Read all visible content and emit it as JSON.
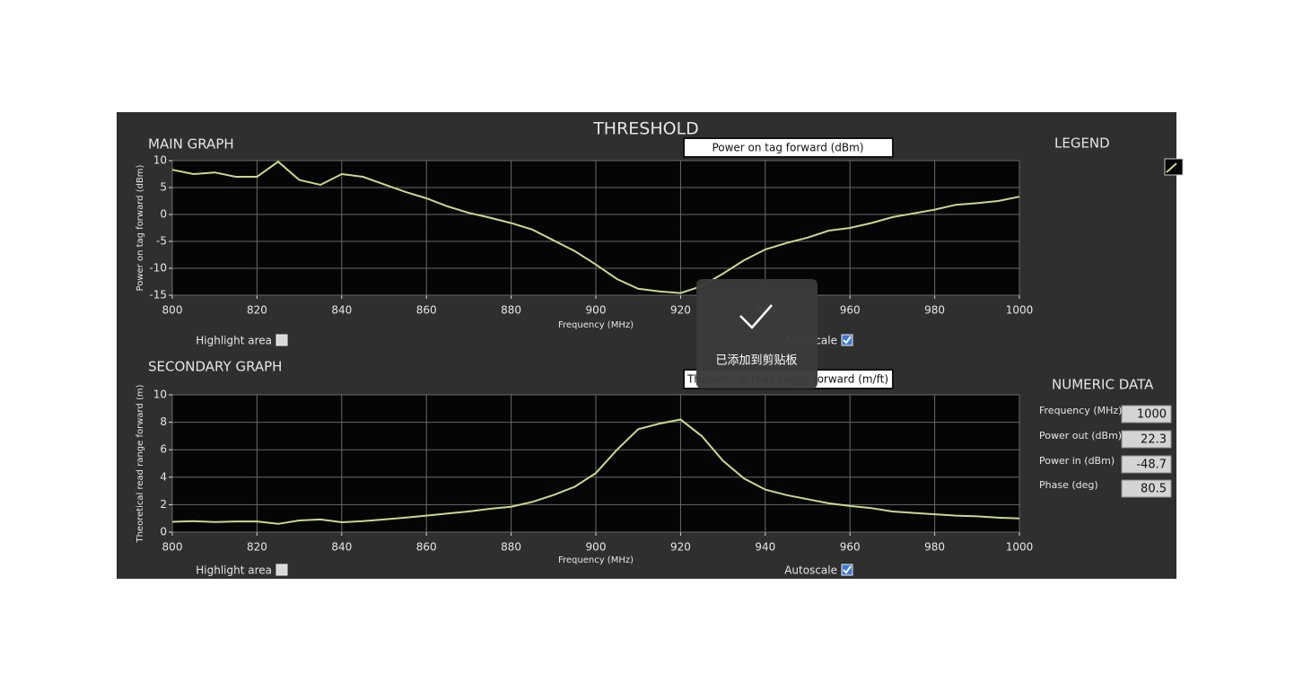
{
  "title": "THRESHOLD",
  "main_graph": {
    "heading": "MAIN GRAPH",
    "selector": "Power on tag forward (dBm)",
    "highlight_label": "Highlight area",
    "highlight_checked": false,
    "autoscale_label": "Autoscale",
    "autoscale_checked": true
  },
  "secondary_graph": {
    "heading": "SECONDARY GRAPH",
    "selector": "Theoretical read range forward (m/ft)",
    "highlight_label": "Highlight area",
    "highlight_checked": false,
    "autoscale_label": "Autoscale",
    "autoscale_checked": true
  },
  "legend": {
    "heading": "LEGEND"
  },
  "numeric_data": {
    "heading": "NUMERIC DATA",
    "rows": [
      {
        "label": "Frequency (MHz)",
        "value": 1000
      },
      {
        "label": "Power out (dBm)",
        "value": 22.3
      },
      {
        "label": "Power in (dBm)",
        "value": -48.7
      },
      {
        "label": "Phase (deg)",
        "value": 80.5
      }
    ]
  },
  "toast": {
    "message": "已添加到剪贴板"
  },
  "chart_data": [
    {
      "type": "line",
      "x_label": "Frequency (MHz)",
      "y_label": "Power on tag forward (dBm)",
      "x": [
        800,
        805,
        810,
        815,
        820,
        825,
        830,
        835,
        840,
        845,
        850,
        855,
        860,
        865,
        870,
        875,
        880,
        885,
        890,
        895,
        900,
        905,
        910,
        915,
        920,
        925,
        930,
        935,
        940,
        945,
        950,
        955,
        960,
        965,
        970,
        975,
        980,
        985,
        990,
        995,
        1000
      ],
      "series": [
        {
          "color": "#c8da8c",
          "values": [
            8.3,
            7.5,
            7.8,
            7.0,
            7.0,
            9.8,
            6.4,
            5.5,
            7.5,
            7.0,
            5.6,
            4.2,
            3.0,
            1.5,
            0.3,
            -0.6,
            -1.6,
            -2.8,
            -4.8,
            -6.8,
            -9.3,
            -12.0,
            -13.8,
            -14.3,
            -14.6,
            -13.3,
            -11.0,
            -8.5,
            -6.5,
            -5.3,
            -4.3,
            -3.0,
            -2.5,
            -1.6,
            -0.5,
            0.2,
            0.9,
            1.8,
            2.1,
            2.5,
            3.3
          ]
        }
      ],
      "xlim": [
        800,
        1000
      ],
      "xticks": [
        800,
        820,
        840,
        860,
        880,
        900,
        920,
        940,
        960,
        980,
        1000
      ],
      "ylim": [
        -15,
        10
      ],
      "yticks": [
        -15,
        -10,
        -5,
        0,
        5,
        10
      ],
      "grid": true
    },
    {
      "type": "line",
      "x_label": "Frequency (MHz)",
      "y_label": "Theoretical read range forward (m)",
      "x": [
        800,
        805,
        810,
        815,
        820,
        825,
        830,
        835,
        840,
        845,
        850,
        855,
        860,
        865,
        870,
        875,
        880,
        885,
        890,
        895,
        900,
        905,
        910,
        915,
        920,
        925,
        930,
        935,
        940,
        945,
        950,
        955,
        960,
        965,
        970,
        975,
        980,
        985,
        990,
        995,
        1000
      ],
      "series": [
        {
          "color": "#c8da8c",
          "values": [
            0.75,
            0.8,
            0.73,
            0.78,
            0.78,
            0.6,
            0.85,
            0.92,
            0.72,
            0.8,
            0.92,
            1.05,
            1.2,
            1.35,
            1.5,
            1.7,
            1.85,
            2.2,
            2.7,
            3.3,
            4.3,
            6.0,
            7.5,
            7.9,
            8.2,
            7.0,
            5.2,
            3.9,
            3.1,
            2.7,
            2.4,
            2.1,
            1.9,
            1.75,
            1.5,
            1.4,
            1.3,
            1.2,
            1.15,
            1.05,
            1.0
          ]
        }
      ],
      "xlim": [
        800,
        1000
      ],
      "xticks": [
        800,
        820,
        840,
        860,
        880,
        900,
        920,
        940,
        960,
        980,
        1000
      ],
      "ylim": [
        0,
        10
      ],
      "yticks": [
        0,
        2,
        4,
        6,
        8,
        10
      ],
      "grid": true
    }
  ]
}
